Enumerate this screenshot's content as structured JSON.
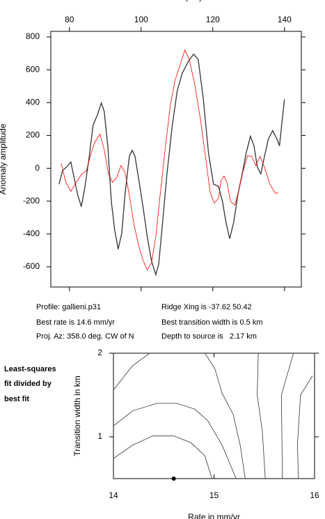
{
  "chart_data": [
    {
      "type": "line",
      "xlabel": "Distance (km)",
      "ylabel": "Anomaly amplitude",
      "xlim": [
        74.8,
        144.7
      ],
      "ylim": [
        -723,
        834
      ],
      "xticks": [
        80,
        100,
        120,
        140
      ],
      "yticks": [
        -600,
        -400,
        -200,
        0,
        200,
        400,
        600,
        800
      ],
      "series": [
        {
          "color": "#333333",
          "x": [
            77.1,
            78.1,
            79.2,
            80.4,
            81.4,
            82.3,
            83.3,
            84.3,
            85.4,
            86.6,
            87.8,
            88.9,
            89.7,
            90.7,
            91.7,
            92.6,
            93.6,
            94.6,
            95.5,
            96.7,
            97.5,
            98.3,
            99.4,
            100.6,
            101.7,
            102.9,
            104.1,
            104.9,
            105.8,
            107.2,
            108.7,
            110.1,
            111.5,
            113.0,
            114.6,
            115.9,
            117.3,
            118.8,
            120.2,
            121.6,
            122.7,
            123.7,
            124.7,
            125.8,
            127.0,
            128.2,
            129.3,
            130.5,
            131.5,
            132.4,
            133.4,
            134.4,
            135.5,
            136.7,
            137.9,
            138.6,
            139.2,
            140.0
          ],
          "values": [
            -97,
            -13,
            8,
            38,
            -68,
            -161,
            -233,
            -119,
            51,
            263,
            326,
            398,
            347,
            136,
            -203,
            -373,
            -492,
            -394,
            -161,
            72,
            110,
            72,
            -76,
            -246,
            -415,
            -564,
            -648,
            -585,
            -373,
            -34,
            263,
            475,
            580,
            644,
            695,
            665,
            432,
            93,
            -97,
            -110,
            -203,
            -331,
            -428,
            -331,
            -161,
            -34,
            93,
            195,
            136,
            8,
            -34,
            72,
            178,
            229,
            178,
            136,
            263,
            420
          ]
        },
        {
          "color": "#ff0000",
          "x": [
            77.7,
            79.0,
            80.4,
            81.9,
            83.5,
            84.7,
            85.8,
            87.0,
            88.5,
            89.7,
            90.9,
            92.0,
            93.2,
            94.4,
            95.5,
            96.7,
            97.9,
            99.4,
            100.6,
            101.7,
            102.9,
            104.1,
            105.2,
            106.8,
            108.2,
            109.5,
            111.1,
            112.2,
            113.4,
            114.9,
            116.5,
            118.1,
            119.2,
            120.4,
            121.6,
            122.3,
            123.1,
            123.9,
            125.0,
            126.2,
            127.4,
            128.5,
            129.7,
            130.9,
            132.0,
            133.2,
            134.4,
            135.9,
            137.5,
            138.3
          ],
          "values": [
            30,
            -85,
            -140,
            -85,
            -34,
            -17,
            72,
            157,
            208,
            114,
            -34,
            -85,
            -55,
            17,
            -25,
            -161,
            -331,
            -479,
            -564,
            -619,
            -576,
            -415,
            -182,
            136,
            390,
            538,
            644,
            720,
            665,
            517,
            305,
            51,
            -140,
            -212,
            -182,
            -76,
            -47,
            -85,
            -203,
            -224,
            -119,
            -13,
            76,
            72,
            17,
            72,
            8,
            -97,
            -153,
            -148
          ]
        }
      ]
    },
    {
      "type": "contour",
      "xlabel": "Rate in mm/yr",
      "ylabel": "Transition width in km",
      "xlim": [
        14,
        16
      ],
      "ylim": [
        0.5,
        2
      ],
      "xticks": [
        14,
        15,
        16
      ],
      "yticks": [
        1,
        2
      ],
      "contours": [
        {
          "x": [
            14.0,
            14.19,
            14.36
          ],
          "y": [
            1.56,
            1.85,
            2.0
          ]
        },
        {
          "x": [
            14.0,
            14.19,
            14.43,
            14.63,
            14.81,
            14.94,
            15.08,
            15.22
          ],
          "y": [
            1.13,
            1.31,
            1.4,
            1.4,
            1.33,
            1.19,
            0.9,
            0.5
          ]
        },
        {
          "x": [
            14.0,
            14.19,
            14.39,
            14.6,
            14.77,
            14.91,
            14.98
          ],
          "y": [
            0.74,
            0.9,
            1.01,
            1.01,
            0.93,
            0.77,
            0.5
          ]
        },
        {
          "x": [
            14.91,
            15.01,
            15.08,
            15.19,
            15.26,
            15.31
          ],
          "y": [
            2.0,
            1.81,
            1.52,
            1.27,
            0.9,
            0.5
          ]
        },
        {
          "x": [
            15.44,
            15.43,
            15.48,
            15.51
          ],
          "y": [
            2.0,
            1.5,
            1.07,
            0.5
          ]
        },
        {
          "x": [
            15.79,
            15.67,
            15.68
          ],
          "y": [
            2.0,
            1.5,
            0.5
          ]
        },
        {
          "x": [
            15.98,
            15.86,
            15.83,
            15.84
          ],
          "y": [
            1.73,
            1.5,
            0.9,
            0.5
          ]
        }
      ],
      "best_fit": {
        "x": 14.6,
        "y": 0.5
      }
    }
  ],
  "info": {
    "profile": "Profile: gallieni.p31",
    "ridge": "Ridge Xing is -37.62 50.42",
    "rate": "Best rate is 14.6 mm/yr",
    "width": "Best transition width is 0.5 km",
    "azimuth": "Proj. Az: 358.0 deg. CW of N",
    "depth": "Depth to source is   2.17 km"
  },
  "side_note": [
    "Least-squares",
    "fit divided by",
    "best fit"
  ]
}
